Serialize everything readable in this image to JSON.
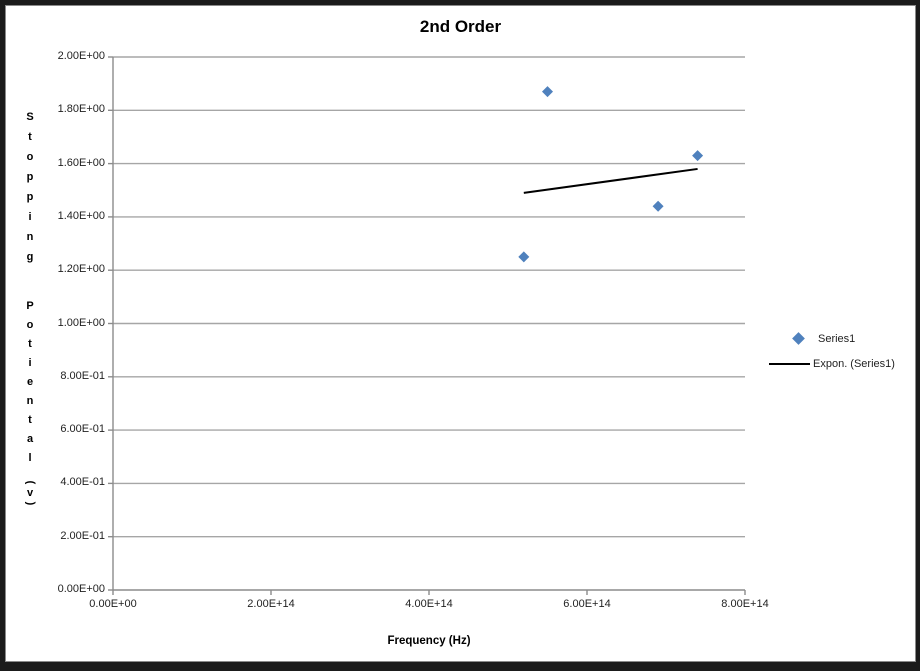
{
  "frame": {
    "border_color": "#1b1b1b",
    "inner_line_color": "#8a8a8a",
    "background": "#ffffff"
  },
  "chart_data": {
    "type": "scatter",
    "title": "2nd Order",
    "xlabel": "Frequency (Hz)",
    "ylabel": "Stopping Potiental (v)",
    "ylabel_segments": [
      "Stopping",
      "Potiental",
      "(v)"
    ],
    "xlim": [
      0,
      800000000000000.0
    ],
    "ylim": [
      0,
      2
    ],
    "x_ticks": [
      "0.00E+00",
      "2.00E+14",
      "4.00E+14",
      "6.00E+14",
      "8.00E+14"
    ],
    "x_tick_values": [
      0,
      200000000000000.0,
      400000000000000.0,
      600000000000000.0,
      800000000000000.0
    ],
    "y_ticks": [
      "0.00E+00",
      "2.00E-01",
      "4.00E-01",
      "6.00E-01",
      "8.00E-01",
      "1.00E+00",
      "1.20E+00",
      "1.40E+00",
      "1.60E+00",
      "1.80E+00",
      "2.00E+00"
    ],
    "y_tick_values": [
      0,
      0.2,
      0.4,
      0.6,
      0.8,
      1.0,
      1.2,
      1.4,
      1.6,
      1.8,
      2.0
    ],
    "grid": "horizontal",
    "gridline_color": "#a6a6a6",
    "axis_color": "#8c8c8c",
    "legend_position": "right",
    "series": [
      {
        "name": "Series1",
        "marker": "diamond",
        "color": "#4F81BD",
        "points": [
          {
            "x": 520000000000000.0,
            "y": 1.25
          },
          {
            "x": 550000000000000.0,
            "y": 1.87
          },
          {
            "x": 690000000000000.0,
            "y": 1.44
          },
          {
            "x": 740000000000000.0,
            "y": 1.63
          }
        ]
      }
    ],
    "trendline": {
      "name": "Expon. (Series1)",
      "type": "exponential",
      "color": "#000000",
      "x_start": 520000000000000.0,
      "y_start": 1.49,
      "x_end": 740000000000000.0,
      "y_end": 1.58
    }
  }
}
